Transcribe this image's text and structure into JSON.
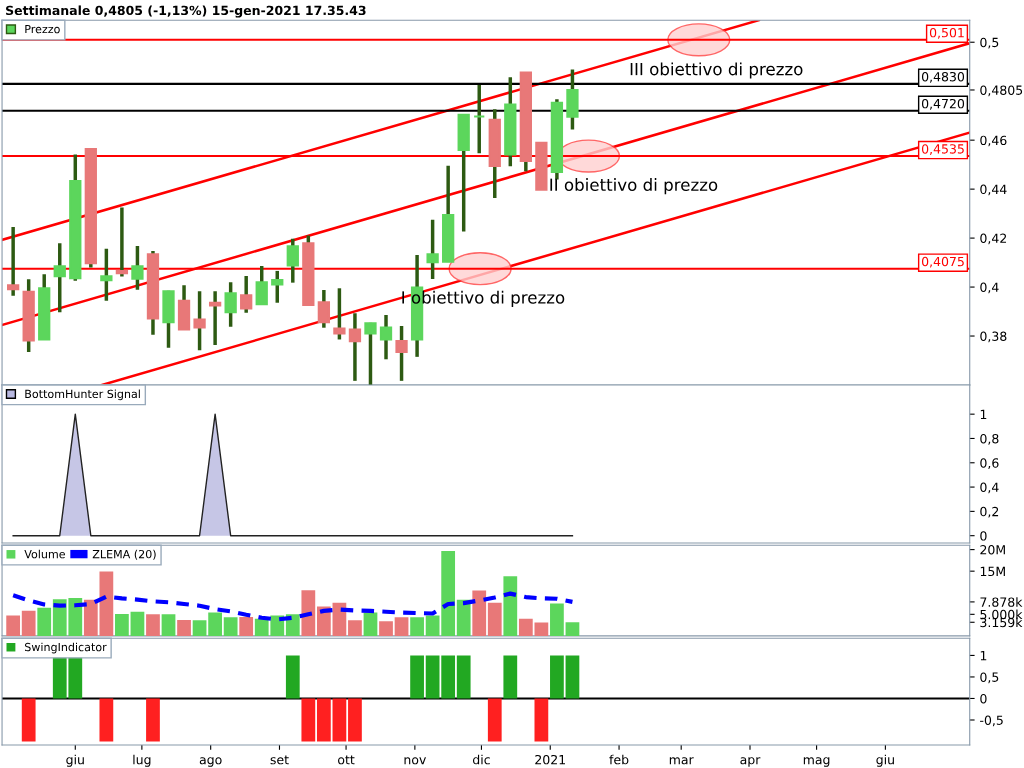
{
  "chart_data": [
    {
      "type": "candlestick",
      "title": "Settimanale 0,4805 (-1,13%) 15-gen-2021 17.35.43",
      "legend": "top left",
      "tick_labels": "y",
      "x": [
        "2020-05-04",
        "2020-05-11",
        "2020-05-18",
        "2020-05-25",
        "2020-06-01",
        "2020-06-08",
        "2020-06-15",
        "2020-06-22",
        "2020-06-29",
        "2020-07-06",
        "2020-07-13",
        "2020-07-20",
        "2020-07-27",
        "2020-08-03",
        "2020-08-10",
        "2020-08-17",
        "2020-08-24",
        "2020-08-31",
        "2020-09-07",
        "2020-09-14",
        "2020-09-21",
        "2020-09-28",
        "2020-10-05",
        "2020-10-12",
        "2020-10-19",
        "2020-10-26",
        "2020-11-02",
        "2020-11-09",
        "2020-11-16",
        "2020-11-23",
        "2020-11-30",
        "2020-12-07",
        "2020-12-14",
        "2020-12-21",
        "2020-12-28",
        "2021-01-04",
        "2021-01-11"
      ],
      "xlim": [
        "2020-04-29",
        "2021-07-09"
      ],
      "ylim": [
        0.36,
        0.509
      ],
      "yticks": [
        {
          "value": 0.38,
          "label": "0,38"
        },
        {
          "value": 0.4,
          "label": "0,4"
        },
        {
          "value": 0.42,
          "label": "0,42"
        },
        {
          "value": 0.44,
          "label": "0,44"
        },
        {
          "value": 0.46,
          "label": "0,46"
        },
        {
          "value": 0.4805,
          "label": "0,4805"
        },
        {
          "value": 0.5,
          "label": "0,5"
        }
      ],
      "series": [
        {
          "name": "Prezzo",
          "colors": [
            "#e87878",
            "#e87878",
            "#5cd65c",
            "#5cd65c",
            "#5cd65c",
            "#e87878",
            "#5cd65c",
            "#e87878",
            "#5cd65c",
            "#e87878",
            "#5cd65c",
            "#e87878",
            "#e87878",
            "#e87878",
            "#5cd65c",
            "#e87878",
            "#5cd65c",
            "#5cd65c",
            "#5cd65c",
            "#e87878",
            "#e87878",
            "#e87878",
            "#e87878",
            "#5cd65c",
            "#5cd65c",
            "#e87878",
            "#5cd65c",
            "#5cd65c",
            "#5cd65c",
            "#5cd65c",
            "#5cd65c",
            "#e87878",
            "#5cd65c",
            "#e87878",
            "#e87878",
            "#5cd65c",
            "#5cd65c"
          ],
          "ohlc": [
            [
              0.4007,
              0.4245,
              0.3965,
              0.3991
            ],
            [
              0.3981,
              0.4032,
              0.3735,
              0.3782
            ],
            [
              0.3786,
              0.4052,
              0.3784,
              0.3995
            ],
            [
              0.4044,
              0.4179,
              0.3897,
              0.4085
            ],
            [
              0.4036,
              0.4541,
              0.4026,
              0.4433
            ],
            [
              0.4564,
              0.4564,
              0.408,
              0.4097
            ],
            [
              0.4028,
              0.4156,
              0.3944,
              0.4044
            ],
            [
              0.4065,
              0.4325,
              0.4043,
              0.4057
            ],
            [
              0.4034,
              0.4168,
              0.3989,
              0.4085
            ],
            [
              0.4134,
              0.4147,
              0.3805,
              0.3872
            ],
            [
              0.3856,
              0.3985,
              0.3752,
              0.3983
            ],
            [
              0.3944,
              0.4007,
              0.3825,
              0.3827
            ],
            [
              0.3867,
              0.3983,
              0.3742,
              0.3835
            ],
            [
              0.3936,
              0.3983,
              0.3763,
              0.3925
            ],
            [
              0.3897,
              0.402,
              0.3838,
              0.3975
            ],
            [
              0.3966,
              0.4045,
              0.3895,
              0.3913
            ],
            [
              0.393,
              0.4086,
              0.3928,
              0.402
            ],
            [
              0.4011,
              0.4066,
              0.3936,
              0.4029
            ],
            [
              0.4088,
              0.4197,
              0.4018,
              0.4167
            ],
            [
              0.4179,
              0.4211,
              0.3925,
              0.3927
            ],
            [
              0.3938,
              0.3988,
              0.3834,
              0.3856
            ],
            [
              0.3831,
              0.3995,
              0.3786,
              0.3811
            ],
            [
              0.3827,
              0.3893,
              0.3617,
              0.3779
            ],
            [
              0.3811,
              0.3854,
              0.3599,
              0.3852
            ],
            [
              0.3786,
              0.3886,
              0.3705,
              0.3835
            ],
            [
              0.378,
              0.3841,
              0.3617,
              0.3735
            ],
            [
              0.3786,
              0.4131,
              0.3715,
              0.3998
            ],
            [
              0.4102,
              0.4275,
              0.4033,
              0.4134
            ],
            [
              0.4104,
              0.4496,
              0.4102,
              0.4294
            ],
            [
              0.456,
              0.4706,
              0.4227,
              0.4704
            ],
            [
              0.4697,
              0.4825,
              0.4547,
              0.4697
            ],
            [
              0.4683,
              0.4726,
              0.4364,
              0.4495
            ],
            [
              0.4542,
              0.4857,
              0.4493,
              0.4745
            ],
            [
              0.4876,
              0.4876,
              0.4473,
              0.4515
            ],
            [
              0.4589,
              0.4589,
              0.4398,
              0.4398
            ],
            [
              0.447,
              0.4767,
              0.4439,
              0.4753
            ],
            [
              0.4696,
              0.4889,
              0.4644,
              0.4805
            ]
          ]
        },
        {
          "type": "line",
          "color": "#ff0000",
          "x": [
            "2020-04-29",
            "2021-04-05"
          ],
          "values": [
            0.4193,
            0.509
          ]
        },
        {
          "type": "line",
          "color": "#ff0000",
          "x": [
            "2020-04-29",
            "2021-07-09"
          ],
          "values": [
            0.3845,
            0.4996
          ]
        },
        {
          "type": "line",
          "color": "#ff0000",
          "x": [
            "2020-06-13",
            "2021-07-09"
          ],
          "values": [
            0.36,
            0.4631
          ]
        }
      ],
      "ref_lines": [
        {
          "axis": "y",
          "value": 0.501,
          "label": "0,501",
          "color": "#ff0000"
        },
        {
          "axis": "y",
          "value": 0.483,
          "label": "0,4830",
          "color": "#000000"
        },
        {
          "axis": "y",
          "value": 0.472,
          "label": "0,4720",
          "color": "#000000"
        },
        {
          "axis": "y",
          "value": 0.4535,
          "label": "0,4535",
          "color": "#ff0000"
        },
        {
          "axis": "y",
          "value": 0.4075,
          "label": "0,4075",
          "color": "#ff0000"
        }
      ],
      "annotations": [
        "III obiettivo di prezzo",
        "II obiettivo di prezzo",
        "I obiettivo di prezzo"
      ]
    },
    {
      "type": "area",
      "legend": "top left",
      "tick_labels": "y",
      "xlim": [
        "2020-04-29",
        "2021-07-09"
      ],
      "ylim": [
        -0.06,
        1.24
      ],
      "yticks": [
        0,
        {
          "value": 0.2,
          "label": "0,2"
        },
        {
          "value": 0.4,
          "label": "0,4"
        },
        {
          "value": 0.6,
          "label": "0,6"
        },
        {
          "value": 0.8,
          "label": "0,8"
        },
        1
      ],
      "x": [
        "2020-05-04",
        "2020-05-11",
        "2020-05-18",
        "2020-05-25",
        "2020-06-01",
        "2020-06-08",
        "2020-06-15",
        "2020-06-22",
        "2020-06-29",
        "2020-07-06",
        "2020-07-13",
        "2020-07-20",
        "2020-07-27",
        "2020-08-03",
        "2020-08-10",
        "2020-08-17",
        "2020-08-24",
        "2020-08-31",
        "2020-09-07",
        "2020-09-14",
        "2020-09-21",
        "2020-09-28",
        "2020-10-05",
        "2020-10-12",
        "2020-10-19",
        "2020-10-26",
        "2020-11-02",
        "2020-11-09",
        "2020-11-16",
        "2020-11-23",
        "2020-11-30",
        "2020-12-07",
        "2020-12-14",
        "2020-12-21",
        "2020-12-28",
        "2021-01-04",
        "2021-01-11"
      ],
      "series": [
        {
          "name": "BottomHunter Signal",
          "color": "#b8b8e0",
          "values": [
            0,
            0,
            0,
            0,
            1,
            0,
            0,
            0,
            0,
            0,
            0,
            0,
            0,
            1,
            0,
            0,
            0,
            0,
            0,
            0,
            0,
            0,
            0,
            0,
            0,
            0,
            0,
            0,
            0,
            0,
            0,
            0,
            0,
            0,
            0,
            0,
            0
          ]
        }
      ]
    },
    {
      "type": "bar",
      "legend": "top left",
      "tick_labels": "y",
      "xlim": [
        "2020-04-29",
        "2021-07-09"
      ],
      "ylim": [
        0,
        21000000
      ],
      "yticks": [
        {
          "value": 3159000,
          "label": "3.159k"
        },
        {
          "value": 5000000,
          "label": "5.000k"
        },
        {
          "value": 7878000,
          "label": "7.878k"
        },
        {
          "value": 15000000,
          "label": "15M"
        },
        {
          "value": 20000000,
          "label": "20M"
        }
      ],
      "x": [
        "2020-05-04",
        "2020-05-11",
        "2020-05-18",
        "2020-05-25",
        "2020-06-01",
        "2020-06-08",
        "2020-06-15",
        "2020-06-22",
        "2020-06-29",
        "2020-07-06",
        "2020-07-13",
        "2020-07-20",
        "2020-07-27",
        "2020-08-03",
        "2020-08-10",
        "2020-08-17",
        "2020-08-24",
        "2020-08-31",
        "2020-09-07",
        "2020-09-14",
        "2020-09-21",
        "2020-09-28",
        "2020-10-05",
        "2020-10-12",
        "2020-10-19",
        "2020-10-26",
        "2020-11-02",
        "2020-11-09",
        "2020-11-16",
        "2020-11-23",
        "2020-11-30",
        "2020-12-07",
        "2020-12-14",
        "2020-12-21",
        "2020-12-28",
        "2021-01-04",
        "2021-01-11"
      ],
      "series": [
        {
          "name": "Volume",
          "colors": [
            "#e87878",
            "#e87878",
            "#5cd65c",
            "#5cd65c",
            "#5cd65c",
            "#e87878",
            "#e87878",
            "#5cd65c",
            "#5cd65c",
            "#e87878",
            "#5cd65c",
            "#e87878",
            "#5cd65c",
            "#5cd65c",
            "#5cd65c",
            "#e87878",
            "#5cd65c",
            "#5cd65c",
            "#5cd65c",
            "#e87878",
            "#e87878",
            "#e87878",
            "#e87878",
            "#5cd65c",
            "#e87878",
            "#e87878",
            "#5cd65c",
            "#5cd65c",
            "#5cd65c",
            "#5cd65c",
            "#e87878",
            "#e87878",
            "#5cd65c",
            "#e87878",
            "#e87878",
            "#5cd65c",
            "#5cd65c"
          ],
          "values": [
            4700000,
            5800000,
            6500000,
            8500000,
            8800000,
            8400000,
            14900000,
            5100000,
            5600000,
            5000000,
            5000000,
            3700000,
            3600000,
            5400000,
            4300000,
            4400000,
            4000000,
            4700000,
            5000000,
            10600000,
            6800000,
            7700000,
            3600000,
            5400000,
            3400000,
            4300000,
            4300000,
            4700000,
            19700000,
            8400000,
            10500000,
            7700000,
            13800000,
            4000000,
            3100000,
            7500000,
            3159000
          ]
        },
        {
          "name": "ZLEMA (20)",
          "type": "line",
          "color": "#0000ff",
          "line_style": "dashed",
          "values": [
            9400000,
            8200000,
            7300000,
            7000000,
            7100000,
            7400000,
            9100000,
            8700000,
            8400000,
            8000000,
            7800000,
            7400000,
            7000000,
            6200000,
            5700000,
            4900000,
            4200000,
            3800000,
            4200000,
            5000000,
            5800000,
            6100000,
            5900000,
            5800000,
            5600000,
            5400000,
            5300000,
            5200000,
            7400000,
            7600000,
            8200000,
            8900000,
            9800000,
            9000000,
            8700000,
            8600000,
            7878000
          ]
        }
      ]
    },
    {
      "type": "bar",
      "legend": "top left",
      "xlim": [
        "2020-04-29",
        "2021-07-09"
      ],
      "ylim": [
        -1.08,
        1.4
      ],
      "yticks": [
        {
          "value": -0.5,
          "label": "-0,5"
        },
        0,
        {
          "value": 0.5,
          "label": "0,5"
        },
        1
      ],
      "xticks": [
        {
          "value": "2020-06-01",
          "label": "giu"
        },
        {
          "value": "2020-07-01",
          "label": "lug"
        },
        {
          "value": "2020-08-01",
          "label": "ago"
        },
        {
          "value": "2020-09-01",
          "label": "set"
        },
        {
          "value": "2020-10-01",
          "label": "ott"
        },
        {
          "value": "2020-11-01",
          "label": "nov"
        },
        {
          "value": "2020-12-01",
          "label": "dic"
        },
        {
          "value": "2021-01-01",
          "label": "2021"
        },
        {
          "value": "2021-02-01",
          "label": "feb"
        },
        {
          "value": "2021-03-01",
          "label": "mar"
        },
        {
          "value": "2021-04-01",
          "label": "apr"
        },
        {
          "value": "2021-05-01",
          "label": "mag"
        },
        {
          "value": "2021-06-01",
          "label": "giu"
        }
      ],
      "x": [
        "2020-05-04",
        "2020-05-11",
        "2020-05-18",
        "2020-05-25",
        "2020-06-01",
        "2020-06-08",
        "2020-06-15",
        "2020-06-22",
        "2020-06-29",
        "2020-07-06",
        "2020-07-13",
        "2020-07-20",
        "2020-07-27",
        "2020-08-03",
        "2020-08-10",
        "2020-08-17",
        "2020-08-24",
        "2020-08-31",
        "2020-09-07",
        "2020-09-14",
        "2020-09-21",
        "2020-09-28",
        "2020-10-05",
        "2020-10-12",
        "2020-10-19",
        "2020-10-26",
        "2020-11-02",
        "2020-11-09",
        "2020-11-16",
        "2020-11-23",
        "2020-11-30",
        "2020-12-07",
        "2020-12-14",
        "2020-12-21",
        "2020-12-28",
        "2021-01-04",
        "2021-01-11"
      ],
      "ref_lines": [
        {
          "axis": "y",
          "value": 0,
          "color": "#000000"
        }
      ],
      "series": [
        {
          "name": "SwingIndicator",
          "colors": [
            "#22a822",
            "#ff2020",
            "#22a822",
            "#22a822",
            "#22a822",
            "#22a822",
            "#ff2020",
            "#22a822",
            "#22a822",
            "#ff2020",
            "#22a822",
            "#22a822",
            "#22a822",
            "#22a822",
            "#22a822",
            "#22a822",
            "#22a822",
            "#22a822",
            "#22a822",
            "#ff2020",
            "#ff2020",
            "#ff2020",
            "#ff2020",
            "#22a822",
            "#22a822",
            "#22a822",
            "#22a822",
            "#22a822",
            "#22a822",
            "#22a822",
            "#22a822",
            "#ff2020",
            "#22a822",
            "#22a822",
            "#ff2020",
            "#22a822",
            "#22a822"
          ],
          "values": [
            0,
            -1,
            0,
            1,
            1,
            0,
            -1,
            0,
            0,
            -1,
            0,
            0,
            0,
            0,
            0,
            0,
            0,
            0,
            1,
            -1,
            -1,
            -1,
            -1,
            0,
            0,
            0,
            1,
            1,
            1,
            1,
            0,
            -1,
            1,
            0,
            -1,
            1,
            1
          ]
        }
      ]
    }
  ]
}
